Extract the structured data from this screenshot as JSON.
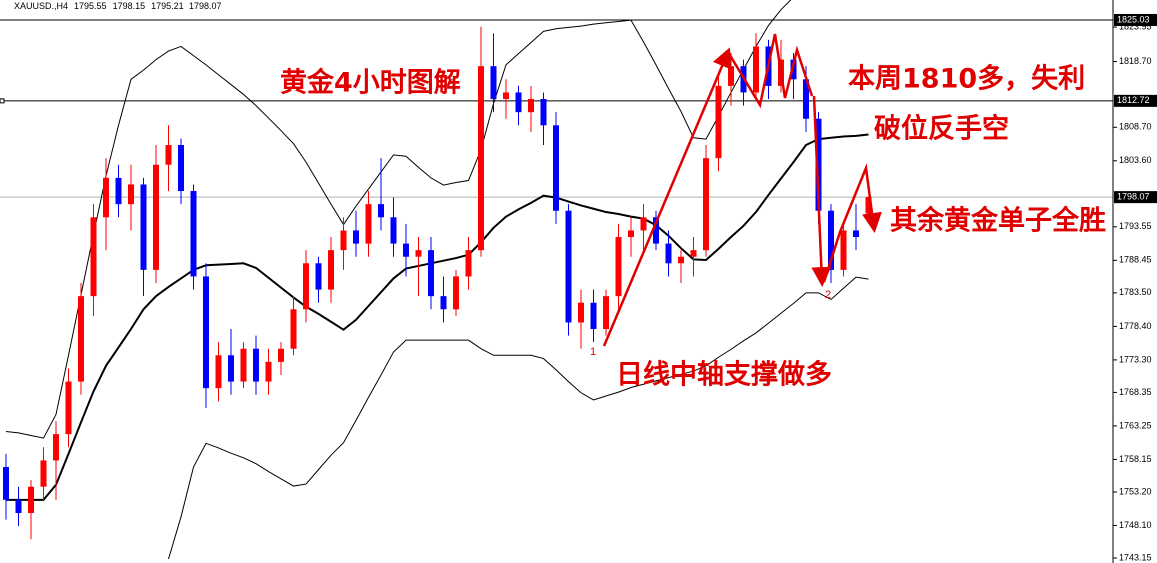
{
  "chart_data": {
    "type": "candlestick",
    "symbol": "XAUUSD.,H4",
    "up_color": "#ff0000",
    "down_color": "#0000ff",
    "candles": [
      [
        1757,
        1759,
        1749,
        1752
      ],
      [
        1752,
        1754,
        1748,
        1750
      ],
      [
        1750,
        1755,
        1746,
        1754
      ],
      [
        1754,
        1760,
        1752,
        1758
      ],
      [
        1758,
        1764,
        1752,
        1762
      ],
      [
        1762,
        1772,
        1760,
        1770
      ],
      [
        1770,
        1785,
        1768,
        1783
      ],
      [
        1783,
        1797,
        1780,
        1795
      ],
      [
        1795,
        1804,
        1790,
        1801
      ],
      [
        1801,
        1803,
        1795,
        1797
      ],
      [
        1797,
        1803,
        1793,
        1800
      ],
      [
        1800,
        1801,
        1783,
        1787
      ],
      [
        1787,
        1806,
        1785,
        1803
      ],
      [
        1803,
        1809,
        1799,
        1806
      ],
      [
        1806,
        1807,
        1797,
        1799
      ],
      [
        1799,
        1800,
        1784,
        1786
      ],
      [
        1786,
        1788,
        1766,
        1769
      ],
      [
        1769,
        1776,
        1767,
        1774
      ],
      [
        1774,
        1778,
        1768,
        1770
      ],
      [
        1770,
        1776,
        1769,
        1775
      ],
      [
        1775,
        1777,
        1768,
        1770
      ],
      [
        1770,
        1775,
        1768,
        1773
      ],
      [
        1773,
        1776,
        1771,
        1775
      ],
      [
        1775,
        1783,
        1774,
        1781
      ],
      [
        1781,
        1790,
        1779,
        1788
      ],
      [
        1788,
        1789,
        1782,
        1784
      ],
      [
        1784,
        1792,
        1782,
        1790
      ],
      [
        1790,
        1795,
        1787,
        1793
      ],
      [
        1793,
        1796,
        1789,
        1791
      ],
      [
        1791,
        1799,
        1789,
        1797
      ],
      [
        1797,
        1804,
        1793,
        1795
      ],
      [
        1795,
        1798,
        1789,
        1791
      ],
      [
        1791,
        1794,
        1786,
        1789
      ],
      [
        1789,
        1792,
        1783,
        1790
      ],
      [
        1790,
        1792,
        1781,
        1783
      ],
      [
        1783,
        1786,
        1779,
        1781
      ],
      [
        1781,
        1787,
        1780,
        1786
      ],
      [
        1786,
        1792,
        1784,
        1790
      ],
      [
        1790,
        1824,
        1789,
        1818
      ],
      [
        1818,
        1823,
        1811,
        1813
      ],
      [
        1813,
        1816,
        1810,
        1814
      ],
      [
        1814,
        1815,
        1809,
        1811
      ],
      [
        1811,
        1815,
        1808,
        1813
      ],
      [
        1813,
        1814,
        1806,
        1809
      ],
      [
        1809,
        1811,
        1794,
        1796
      ],
      [
        1796,
        1797,
        1777,
        1779
      ],
      [
        1779,
        1784,
        1775,
        1782
      ],
      [
        1782,
        1784,
        1776,
        1778
      ],
      [
        1778,
        1784,
        1777,
        1783
      ],
      [
        1783,
        1794,
        1781,
        1792
      ],
      [
        1792,
        1795,
        1789,
        1793
      ],
      [
        1793,
        1797,
        1790,
        1795
      ],
      [
        1795,
        1796,
        1790,
        1791
      ],
      [
        1791,
        1793,
        1786,
        1788
      ],
      [
        1788,
        1790,
        1785,
        1789
      ],
      [
        1789,
        1792,
        1786,
        1790
      ],
      [
        1790,
        1806,
        1789,
        1804
      ],
      [
        1804,
        1817,
        1802,
        1815
      ],
      [
        1815,
        1820,
        1812,
        1818
      ],
      [
        1818,
        1819,
        1812,
        1814
      ],
      [
        1814,
        1823,
        1813,
        1821
      ],
      [
        1821,
        1822,
        1813,
        1815
      ],
      [
        1815,
        1822,
        1814,
        1819
      ],
      [
        1819,
        1820,
        1813,
        1816
      ],
      [
        1816,
        1818,
        1808,
        1810
      ],
      [
        1810,
        1811,
        1794,
        1796
      ],
      [
        1796,
        1797,
        1785,
        1787
      ],
      [
        1787,
        1794,
        1786,
        1793
      ],
      [
        1793,
        1797,
        1790,
        1792
      ],
      [
        1795.55,
        1798.15,
        1795.21,
        1798.07
      ]
    ],
    "bands": [
      {
        "color": "#000000",
        "width": 1,
        "values": [
          1762.4,
          1762.2,
          1761.8,
          1761.4,
          1765,
          1774,
          1783.2,
          1792.4,
          1801.3,
          1809,
          1816,
          1817.4,
          1819,
          1820.3,
          1821,
          1819.6,
          1818.2,
          1816.7,
          1815.2,
          1813.7,
          1812,
          1810.1,
          1808.2,
          1806.2,
          1803.4,
          1800.2,
          1797,
          1793.9,
          1796.7,
          1799.3,
          1801.9,
          1804.5,
          1804.3,
          1802.6,
          1801,
          1799.9,
          1800.3,
          1800.6,
          1805.3,
          1812.3,
          1818.2,
          1819.9,
          1821.6,
          1823.3,
          1823.7,
          1823.9,
          1824.1,
          1824.4,
          1824.6,
          1824.8,
          1825,
          1821.7,
          1818.2,
          1814.6,
          1811.1,
          1807.1,
          1806.9,
          1810.4,
          1814,
          1817.5,
          1821,
          1824.2,
          1826.6,
          1828.5,
          null,
          null,
          null,
          null,
          null,
          null
        ]
      },
      {
        "color": "#000000",
        "width": 2,
        "values": [
          1752,
          1752,
          1752,
          1752,
          1754.3,
          1759,
          1763.8,
          1768.5,
          1772.4,
          1775.2,
          1778,
          1781,
          1783,
          1784.4,
          1785.7,
          1787,
          1787.7,
          1787.8,
          1787.9,
          1788,
          1787.3,
          1785.8,
          1784.3,
          1782.8,
          1781.4,
          1780.3,
          1779.1,
          1777.9,
          1779.4,
          1781.5,
          1783.6,
          1785.7,
          1787.2,
          1787.6,
          1788,
          1788.4,
          1788.8,
          1789.3,
          1791.2,
          1793.4,
          1795.1,
          1796.2,
          1797.2,
          1798.3,
          1798,
          1797.4,
          1796.8,
          1796.3,
          1795.8,
          1795.5,
          1795.1,
          1794.8,
          1793.8,
          1792.2,
          1790.3,
          1788.6,
          1788.5,
          1790.2,
          1792,
          1793.7,
          1795.8,
          1798.4,
          1800.9,
          1803.4,
          1806,
          1806.9,
          1807.1,
          1807.3,
          1807.4,
          1807.6
        ]
      },
      {
        "color": "#000000",
        "width": 1,
        "values": [
          null,
          null,
          null,
          null,
          null,
          null,
          null,
          null,
          null,
          null,
          null,
          null,
          null,
          1743,
          1749.4,
          1757,
          1760.6,
          1759.9,
          1759.1,
          1758.4,
          1757.5,
          1756.3,
          1755.2,
          1754.1,
          1754.4,
          1756.6,
          1758.8,
          1760.7,
          1764.1,
          1767.6,
          1771,
          1774.5,
          1776.3,
          1776.3,
          1776.3,
          1776.3,
          1776.3,
          1776.3,
          1775,
          1774,
          1774,
          1774,
          1774,
          1773.5,
          1771.8,
          1770,
          1768.3,
          1767.2,
          1767.8,
          1768.4,
          1769.1,
          1769.6,
          1770.1,
          1770.6,
          1771.1,
          1771.6,
          1772.4,
          1773.7,
          1774.9,
          1776.2,
          1777.4,
          1778.9,
          1780.4,
          1781.9,
          1783.5,
          1783.5,
          1782.5,
          1784.2,
          1785.9,
          1785.6
        ]
      }
    ],
    "levels": [
      1825.03,
      1812.72
    ],
    "current_price": 1798.07,
    "ylim": [
      1742.39,
      1828.07
    ],
    "yticks": [
      1823.95,
      {
        "value": 1818.7,
        "label": "1818.70"
      },
      {
        "value": 1808.7,
        "label": "1808.70"
      },
      {
        "value": 1803.6,
        "label": "1803.60"
      },
      1793.55,
      1788.45,
      {
        "value": 1783.5,
        "label": "1783.50"
      },
      {
        "value": 1778.4,
        "label": "1778.40"
      },
      {
        "value": 1773.3,
        "label": "1773.30"
      },
      1768.35,
      1763.25,
      1758.15,
      {
        "value": 1753.2,
        "label": "1753.20"
      },
      {
        "value": 1748.1,
        "label": "1748.10"
      },
      1743.15
    ],
    "annotations": [
      "黄金4小时图解",
      "本周1810多，失利",
      "破位反手空",
      "其余黄金单子全胜",
      "日线中轴支撑做多",
      "1",
      "2"
    ]
  }
}
